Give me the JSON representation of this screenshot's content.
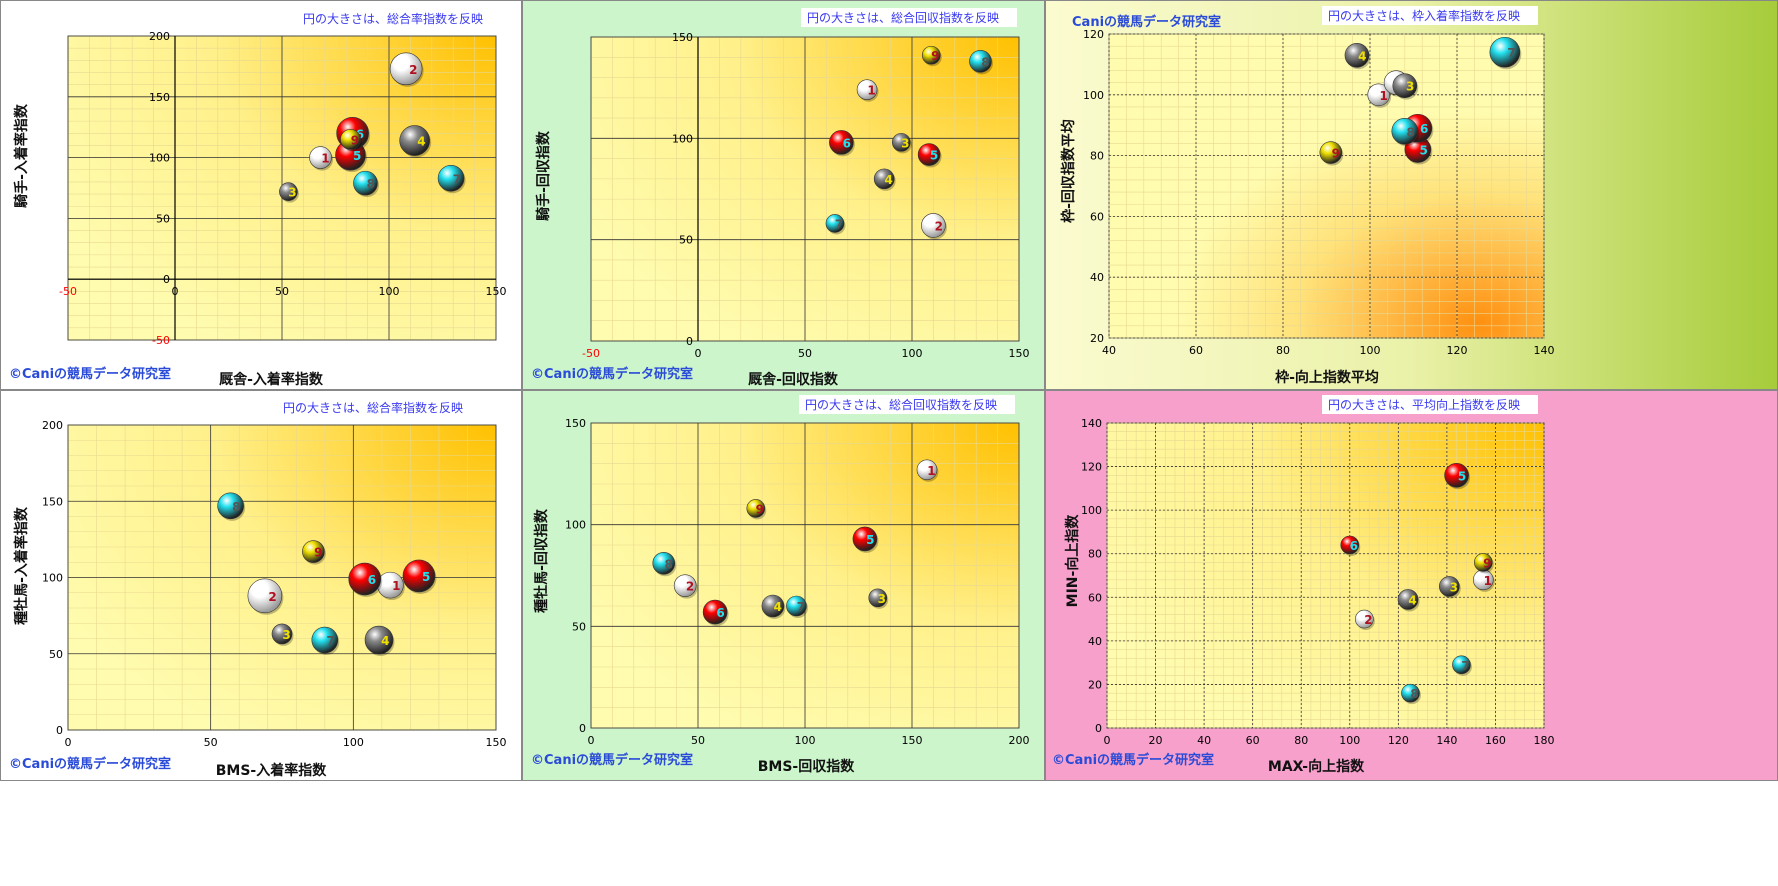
{
  "credit": "©Caniの競馬データ研究室",
  "credit_plain": "Caniの競馬データ研究室",
  "colors": {
    "1": "#ffffff",
    "2": "#ffffff",
    "3": "#8a8a8a",
    "4": "#8a8a8a",
    "5": "#ff0000",
    "6": "#ff0000",
    "7": "#22e0ee",
    "8": "#22e0ee",
    "9": "#f0e000"
  },
  "label_colors": {
    "1": "#b01020",
    "2": "#b01020",
    "3": "#f0e000",
    "4": "#f0e000",
    "5": "#22e0ee",
    "6": "#22e0ee",
    "7": "#555555",
    "8": "#555555",
    "9": "#b01020"
  },
  "panels": [
    {
      "id": "p1",
      "note": "円の大きさは、総合率指数を反映",
      "chart_data": {
        "type": "scatter",
        "xlabel": "厩舎-入着率指数",
        "ylabel": "騎手-入着率指数",
        "xlim": [
          -50,
          150
        ],
        "ylim": [
          -50,
          200
        ],
        "xticks": [
          "-50",
          "0",
          "50",
          "100",
          "150"
        ],
        "yticks": [
          "-50",
          "0",
          "50",
          "100",
          "150",
          "200"
        ],
        "neg_tick_color": "#ff0000",
        "grid": "on",
        "points": [
          {
            "label": "1",
            "x": 68,
            "y": 100,
            "size": 11
          },
          {
            "label": "2",
            "x": 108,
            "y": 173,
            "size": 16
          },
          {
            "label": "3",
            "x": 53,
            "y": 72,
            "size": 9
          },
          {
            "label": "4",
            "x": 112,
            "y": 114,
            "size": 15
          },
          {
            "label": "5",
            "x": 82,
            "y": 102,
            "size": 15
          },
          {
            "label": "6",
            "x": 83,
            "y": 120,
            "size": 16
          },
          {
            "label": "7",
            "x": 129,
            "y": 83,
            "size": 13
          },
          {
            "label": "8",
            "x": 89,
            "y": 79,
            "size": 12
          },
          {
            "label": "9",
            "x": 82,
            "y": 115,
            "size": 10
          }
        ]
      }
    },
    {
      "id": "p2",
      "note": "円の大きさは、総合回収指数を反映",
      "chart_data": {
        "type": "scatter",
        "xlabel": "厩舎-回収指数",
        "ylabel": "騎手-回収指数",
        "xlim": [
          -50,
          150
        ],
        "ylim": [
          0,
          150
        ],
        "xticks": [
          "-50",
          "0",
          "50",
          "100",
          "150"
        ],
        "yticks": [
          "0",
          "50",
          "100",
          "150"
        ],
        "neg_tick_color": "#ff0000",
        "grid": "on",
        "points": [
          {
            "label": "1",
            "x": 79,
            "y": 124,
            "size": 10
          },
          {
            "label": "2",
            "x": 110,
            "y": 57,
            "size": 12
          },
          {
            "label": "3",
            "x": 95,
            "y": 98,
            "size": 9
          },
          {
            "label": "4",
            "x": 87,
            "y": 80,
            "size": 10
          },
          {
            "label": "5",
            "x": 108,
            "y": 92,
            "size": 11
          },
          {
            "label": "6",
            "x": 67,
            "y": 98,
            "size": 12
          },
          {
            "label": "7",
            "x": 64,
            "y": 58,
            "size": 9
          },
          {
            "label": "8",
            "x": 132,
            "y": 138,
            "size": 11
          },
          {
            "label": "9",
            "x": 109,
            "y": 141,
            "size": 9
          }
        ]
      }
    },
    {
      "id": "p3",
      "note": "円の大きさは、枠入着率指数を反映",
      "chart_data": {
        "type": "scatter",
        "xlabel": "枠-向上指数平均",
        "ylabel": "枠-回収指数平均",
        "xlim": [
          40,
          140
        ],
        "ylim": [
          20,
          120
        ],
        "xticks": [
          "40",
          "60",
          "80",
          "100",
          "120",
          "140"
        ],
        "yticks": [
          "20",
          "40",
          "60",
          "80",
          "100",
          "120"
        ],
        "grid": "on",
        "points": [
          {
            "label": "1",
            "x": 102,
            "y": 100,
            "size": 11
          },
          {
            "label": "2",
            "x": 106,
            "y": 104,
            "size": 12
          },
          {
            "label": "3",
            "x": 108,
            "y": 103,
            "size": 12
          },
          {
            "label": "4",
            "x": 97,
            "y": 113,
            "size": 12
          },
          {
            "label": "5",
            "x": 111,
            "y": 82,
            "size": 13
          },
          {
            "label": "6",
            "x": 111,
            "y": 89,
            "size": 14
          },
          {
            "label": "7",
            "x": 131,
            "y": 114,
            "size": 15
          },
          {
            "label": "8",
            "x": 108,
            "y": 88,
            "size": 13
          },
          {
            "label": "9",
            "x": 91,
            "y": 81,
            "size": 11
          }
        ]
      }
    },
    {
      "id": "p4",
      "note": "円の大きさは、総合率指数を反映",
      "chart_data": {
        "type": "scatter",
        "xlabel": "BMS-入着率指数",
        "ylabel": "種牡馬-入着率指数",
        "xlim": [
          0,
          150
        ],
        "ylim": [
          0,
          200
        ],
        "xticks": [
          "0",
          "50",
          "100",
          "150"
        ],
        "yticks": [
          "0",
          "50",
          "100",
          "150",
          "200"
        ],
        "grid": "on",
        "points": [
          {
            "label": "1",
            "x": 113,
            "y": 95,
            "size": 13
          },
          {
            "label": "2",
            "x": 69,
            "y": 88,
            "size": 17
          },
          {
            "label": "3",
            "x": 75,
            "y": 63,
            "size": 10
          },
          {
            "label": "4",
            "x": 109,
            "y": 59,
            "size": 14
          },
          {
            "label": "5",
            "x": 123,
            "y": 101,
            "size": 16
          },
          {
            "label": "6",
            "x": 104,
            "y": 99,
            "size": 16
          },
          {
            "label": "7",
            "x": 90,
            "y": 59,
            "size": 13
          },
          {
            "label": "8",
            "x": 57,
            "y": 147,
            "size": 13
          },
          {
            "label": "9",
            "x": 86,
            "y": 117,
            "size": 11
          }
        ]
      }
    },
    {
      "id": "p5",
      "note": "円の大きさは、総合回収指数を反映",
      "chart_data": {
        "type": "scatter",
        "xlabel": "BMS-回収指数",
        "ylabel": "種牡馬-回収指数",
        "xlim": [
          0,
          200
        ],
        "ylim": [
          0,
          150
        ],
        "xticks": [
          "0",
          "50",
          "100",
          "150",
          "200"
        ],
        "yticks": [
          "0",
          "50",
          "100",
          "150"
        ],
        "grid": "on",
        "points": [
          {
            "label": "1",
            "x": 157,
            "y": 127,
            "size": 10
          },
          {
            "label": "2",
            "x": 44,
            "y": 70,
            "size": 11
          },
          {
            "label": "3",
            "x": 134,
            "y": 64,
            "size": 9
          },
          {
            "label": "4",
            "x": 85,
            "y": 60,
            "size": 11
          },
          {
            "label": "5",
            "x": 128,
            "y": 93,
            "size": 12
          },
          {
            "label": "6",
            "x": 58,
            "y": 57,
            "size": 12
          },
          {
            "label": "7",
            "x": 96,
            "y": 60,
            "size": 10
          },
          {
            "label": "8",
            "x": 34,
            "y": 81,
            "size": 11
          },
          {
            "label": "9",
            "x": 77,
            "y": 108,
            "size": 9
          }
        ]
      }
    },
    {
      "id": "p6",
      "note": "円の大きさは、平均向上指数を反映",
      "chart_data": {
        "type": "scatter",
        "xlabel": "MAX-向上指数",
        "ylabel": "MIN-向上指数",
        "xlim": [
          0,
          180
        ],
        "ylim": [
          0,
          140
        ],
        "xticks": [
          "0",
          "20",
          "40",
          "60",
          "80",
          "100",
          "120",
          "140",
          "160",
          "180"
        ],
        "yticks": [
          "0",
          "20",
          "40",
          "60",
          "80",
          "100",
          "120",
          "140"
        ],
        "grid": "on",
        "points": [
          {
            "label": "1",
            "x": 155,
            "y": 68,
            "size": 10
          },
          {
            "label": "2",
            "x": 106,
            "y": 50,
            "size": 9
          },
          {
            "label": "3",
            "x": 141,
            "y": 65,
            "size": 10
          },
          {
            "label": "4",
            "x": 124,
            "y": 59,
            "size": 10
          },
          {
            "label": "5",
            "x": 144,
            "y": 116,
            "size": 12
          },
          {
            "label": "6",
            "x": 100,
            "y": 84,
            "size": 9
          },
          {
            "label": "7",
            "x": 146,
            "y": 29,
            "size": 9
          },
          {
            "label": "8",
            "x": 125,
            "y": 16,
            "size": 9
          },
          {
            "label": "9",
            "x": 155,
            "y": 76,
            "size": 9
          }
        ]
      }
    }
  ]
}
